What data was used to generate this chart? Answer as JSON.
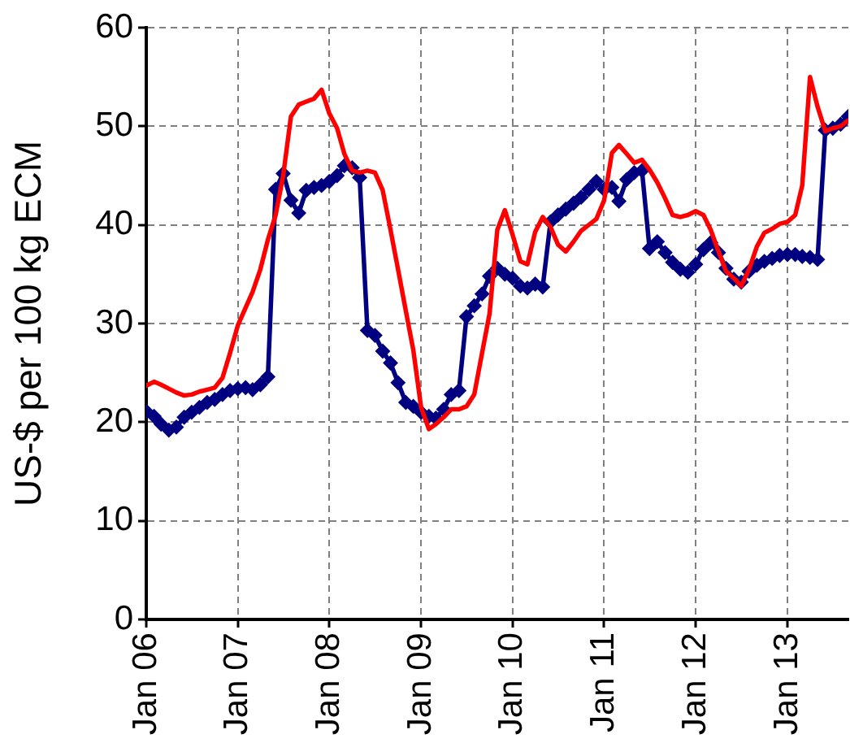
{
  "chart_data": {
    "type": "line",
    "ylabel": "US-$ per 100 kg ECM",
    "x": [
      "2006-01",
      "2006-02",
      "2006-03",
      "2006-04",
      "2006-05",
      "2006-06",
      "2006-07",
      "2006-08",
      "2006-09",
      "2006-10",
      "2006-11",
      "2006-12",
      "2007-01",
      "2007-02",
      "2007-03",
      "2007-04",
      "2007-05",
      "2007-06",
      "2007-07",
      "2007-08",
      "2007-09",
      "2007-10",
      "2007-11",
      "2007-12",
      "2008-01",
      "2008-02",
      "2008-03",
      "2008-04",
      "2008-05",
      "2008-06",
      "2008-07",
      "2008-08",
      "2008-09",
      "2008-10",
      "2008-11",
      "2008-12",
      "2009-01",
      "2009-02",
      "2009-03",
      "2009-04",
      "2009-05",
      "2009-06",
      "2009-07",
      "2009-08",
      "2009-09",
      "2009-10",
      "2009-11",
      "2009-12",
      "2010-01",
      "2010-02",
      "2010-03",
      "2010-04",
      "2010-05",
      "2010-06",
      "2010-07",
      "2010-08",
      "2010-09",
      "2010-10",
      "2010-11",
      "2010-12",
      "2011-01",
      "2011-02",
      "2011-03",
      "2011-04",
      "2011-05",
      "2011-06",
      "2011-07",
      "2011-08",
      "2011-09",
      "2011-10",
      "2011-11",
      "2011-12",
      "2012-01",
      "2012-02",
      "2012-03",
      "2012-04",
      "2012-05",
      "2012-06",
      "2012-07",
      "2012-08",
      "2012-09",
      "2012-10",
      "2012-11",
      "2012-12",
      "2013-01",
      "2013-02",
      "2013-03",
      "2013-04",
      "2013-05",
      "2013-06",
      "2013-07",
      "2013-08",
      "2013-09"
    ],
    "series": [
      {
        "color": "#000080",
        "marker": "diamond",
        "values": [
          21.1,
          20.6,
          19.8,
          19.2,
          19.5,
          20.5,
          21.0,
          21.5,
          22.0,
          22.3,
          22.8,
          23.2,
          23.4,
          23.5,
          23.3,
          23.8,
          24.6,
          43.6,
          45.2,
          42.5,
          41.2,
          43.5,
          43.8,
          44.0,
          44.4,
          45.0,
          46.0,
          45.8,
          44.8,
          29.3,
          28.8,
          27.2,
          26.0,
          24.0,
          22.0,
          21.6,
          21.0,
          20.6,
          20.4,
          21.3,
          22.8,
          23.2,
          30.7,
          31.8,
          33.0,
          34.8,
          35.6,
          35.0,
          34.6,
          33.8,
          33.6,
          34.0,
          33.7,
          40.3,
          41.0,
          41.6,
          42.2,
          42.8,
          43.6,
          44.4,
          43.6,
          43.8,
          42.4,
          44.6,
          45.3,
          45.5,
          37.6,
          38.3,
          37.2,
          36.2,
          35.5,
          35.2,
          36.0,
          37.5,
          38.2,
          37.2,
          35.6,
          34.5,
          34.2,
          35.3,
          35.9,
          36.3,
          36.6,
          36.9,
          37.0,
          37.0,
          36.8,
          36.7,
          36.5,
          49.6,
          49.8,
          50.2,
          51.0
        ]
      },
      {
        "color": "#ff0000",
        "values": [
          23.7,
          24.1,
          23.8,
          23.4,
          23.0,
          22.7,
          22.8,
          23.1,
          23.3,
          23.5,
          24.5,
          27.0,
          29.8,
          31.6,
          33.2,
          35.5,
          38.5,
          41.0,
          45.0,
          51.0,
          52.2,
          52.5,
          52.8,
          53.7,
          51.3,
          49.8,
          47.2,
          45.5,
          45.3,
          45.5,
          45.3,
          43.5,
          39.5,
          35.5,
          31.3,
          27.3,
          21.5,
          19.3,
          19.8,
          20.5,
          21.3,
          21.3,
          21.6,
          22.8,
          27.0,
          31.0,
          39.5,
          41.5,
          39.0,
          36.3,
          36.0,
          39.3,
          40.8,
          39.8,
          38.0,
          37.3,
          38.3,
          39.4,
          40.0,
          40.6,
          42.5,
          47.3,
          48.1,
          47.2,
          46.3,
          46.6,
          45.6,
          44.3,
          42.7,
          41.0,
          40.8,
          41.0,
          41.4,
          41.0,
          39.5,
          37.3,
          35.3,
          34.6,
          33.8,
          35.5,
          37.8,
          39.2,
          39.6,
          40.1,
          40.3,
          41.0,
          44.0,
          55.0,
          52.0,
          49.5,
          49.8,
          50.0,
          50.6
        ]
      }
    ],
    "xlim": [
      "2006-01",
      "2013-09"
    ],
    "xticks": [
      {
        "value": "2006-01",
        "label": "Jan 06"
      },
      {
        "value": "2007-01",
        "label": "Jan 07"
      },
      {
        "value": "2008-01",
        "label": "Jan 08"
      },
      {
        "value": "2009-01",
        "label": "Jan 09"
      },
      {
        "value": "2010-01",
        "label": "Jan 10"
      },
      {
        "value": "2011-01",
        "label": "Jan 11"
      },
      {
        "value": "2012-01",
        "label": "Jan 12"
      },
      {
        "value": "2013-01",
        "label": "Jan 13"
      }
    ],
    "ylim": [
      0,
      60
    ],
    "yticks": [
      0,
      10,
      20,
      30,
      40,
      50,
      60
    ],
    "grid": true
  }
}
